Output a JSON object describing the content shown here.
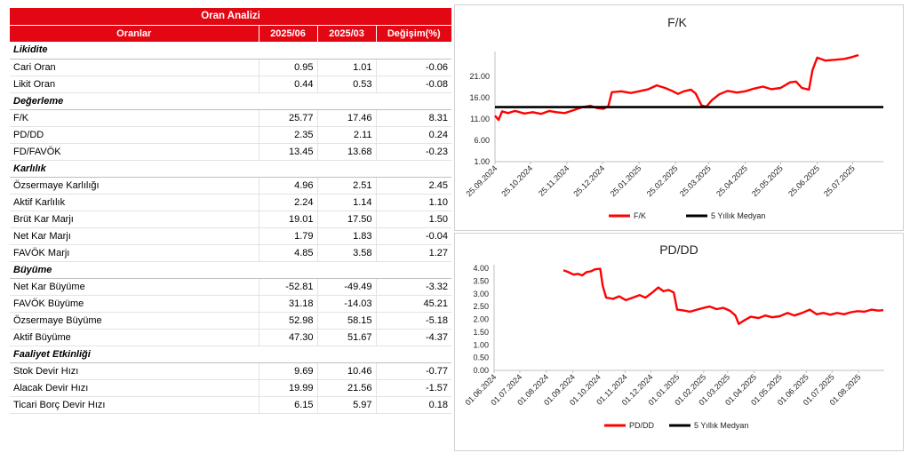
{
  "table": {
    "title": "Oran Analizi",
    "columns": [
      "Oranlar",
      "2025/06",
      "2025/03",
      "Değişim(%)"
    ],
    "sections": [
      {
        "name": "Likidite",
        "rows": [
          [
            "Cari Oran",
            "0.95",
            "1.01",
            "-0.06"
          ],
          [
            "Likit Oran",
            "0.44",
            "0.53",
            "-0.08"
          ]
        ]
      },
      {
        "name": "Değerleme",
        "rows": [
          [
            "F/K",
            "25.77",
            "17.46",
            "8.31"
          ],
          [
            "PD/DD",
            "2.35",
            "2.11",
            "0.24"
          ],
          [
            "FD/FAVÖK",
            "13.45",
            "13.68",
            "-0.23"
          ]
        ]
      },
      {
        "name": "Karlılık",
        "rows": [
          [
            "Özsermaye Karlılığı",
            "4.96",
            "2.51",
            "2.45"
          ],
          [
            "Aktif Karlılık",
            "2.24",
            "1.14",
            "1.10"
          ],
          [
            "Brüt Kar Marjı",
            "19.01",
            "17.50",
            "1.50"
          ],
          [
            "Net Kar Marjı",
            "1.79",
            "1.83",
            "-0.04"
          ],
          [
            "FAVÖK Marjı",
            "4.85",
            "3.58",
            "1.27"
          ]
        ]
      },
      {
        "name": "Büyüme",
        "rows": [
          [
            "Net Kar Büyüme",
            "-52.81",
            "-49.49",
            "-3.32"
          ],
          [
            "FAVÖK Büyüme",
            "31.18",
            "-14.03",
            "45.21"
          ],
          [
            "Özsermaye Büyüme",
            "52.98",
            "58.15",
            "-5.18"
          ],
          [
            "Aktif Büyüme",
            "47.30",
            "51.67",
            "-4.37"
          ]
        ]
      },
      {
        "name": "Faaliyet Etkinliği",
        "rows": [
          [
            "Stok Devir Hızı",
            "9.69",
            "10.46",
            "-0.77"
          ],
          [
            "Alacak Devir Hızı",
            "19.99",
            "21.56",
            "-1.57"
          ],
          [
            "Ticari Borç Devir Hızı",
            "6.15",
            "5.97",
            "0.18"
          ]
        ]
      }
    ]
  },
  "colors": {
    "accent": "#e30613",
    "series": "#ff0000",
    "median": "#000000"
  },
  "chart_data": [
    {
      "type": "line",
      "title": "F/K",
      "ylim": [
        1.0,
        26.0
      ],
      "yticks": [
        "1.00",
        "6.00",
        "11.00",
        "16.00",
        "21.00"
      ],
      "x_start": "2024-09-25",
      "x_end": "2025-08-20",
      "xticks": [
        "25.09.2024",
        "25.10.2024",
        "25.11.2024",
        "25.12.2024",
        "25.01.2025",
        "25.02.2025",
        "25.03.2025",
        "25.04.2025",
        "25.05.2025",
        "25.06.2025",
        "25.07.2025"
      ],
      "xtick_dates": [
        "2024-09-25",
        "2024-10-25",
        "2024-11-25",
        "2024-12-25",
        "2025-01-25",
        "2025-02-25",
        "2025-03-25",
        "2025-04-25",
        "2025-05-25",
        "2025-06-25",
        "2025-07-25"
      ],
      "grid": false,
      "legend": "bottom",
      "series": [
        {
          "name": "F/K",
          "color": "#ff0000",
          "points": [
            [
              "2024-09-25",
              11.8
            ],
            [
              "2024-09-28",
              10.8
            ],
            [
              "2024-10-01",
              12.8
            ],
            [
              "2024-10-06",
              12.4
            ],
            [
              "2024-10-12",
              12.9
            ],
            [
              "2024-10-20",
              12.3
            ],
            [
              "2024-10-27",
              12.6
            ],
            [
              "2024-11-03",
              12.2
            ],
            [
              "2024-11-10",
              12.9
            ],
            [
              "2024-11-16",
              12.6
            ],
            [
              "2024-11-23",
              12.4
            ],
            [
              "2024-12-01",
              13.1
            ],
            [
              "2024-12-08",
              13.8
            ],
            [
              "2024-12-15",
              14.1
            ],
            [
              "2024-12-20",
              13.6
            ],
            [
              "2024-12-26",
              13.4
            ],
            [
              "2024-12-30",
              14.0
            ],
            [
              "2025-01-02",
              17.3
            ],
            [
              "2025-01-10",
              17.5
            ],
            [
              "2025-01-18",
              17.1
            ],
            [
              "2025-01-25",
              17.5
            ],
            [
              "2025-02-02",
              18.0
            ],
            [
              "2025-02-09",
              18.9
            ],
            [
              "2025-02-16",
              18.3
            ],
            [
              "2025-02-22",
              17.6
            ],
            [
              "2025-02-27",
              16.9
            ],
            [
              "2025-03-04",
              17.5
            ],
            [
              "2025-03-10",
              17.9
            ],
            [
              "2025-03-14",
              17.0
            ],
            [
              "2025-03-19",
              14.2
            ],
            [
              "2025-03-23",
              13.9
            ],
            [
              "2025-03-28",
              15.5
            ],
            [
              "2025-04-03",
              16.8
            ],
            [
              "2025-04-10",
              17.6
            ],
            [
              "2025-04-18",
              17.2
            ],
            [
              "2025-04-25",
              17.5
            ],
            [
              "2025-05-02",
              18.1
            ],
            [
              "2025-05-10",
              18.6
            ],
            [
              "2025-05-17",
              18.0
            ],
            [
              "2025-05-25",
              18.3
            ],
            [
              "2025-06-02",
              19.6
            ],
            [
              "2025-06-07",
              19.8
            ],
            [
              "2025-06-12",
              18.3
            ],
            [
              "2025-06-18",
              17.9
            ],
            [
              "2025-06-21",
              22.5
            ],
            [
              "2025-06-25",
              25.4
            ],
            [
              "2025-07-02",
              24.7
            ],
            [
              "2025-07-10",
              24.9
            ],
            [
              "2025-07-18",
              25.1
            ],
            [
              "2025-07-24",
              25.5
            ],
            [
              "2025-07-30",
              26.0
            ]
          ]
        },
        {
          "name": "5 Yıllık Medyan",
          "color": "#000000",
          "points": [
            [
              "2024-09-25",
              13.8
            ],
            [
              "2025-08-20",
              13.8
            ]
          ]
        }
      ]
    },
    {
      "type": "line",
      "title": "PD/DD",
      "ylim": [
        0.0,
        4.0
      ],
      "yticks": [
        "0.00",
        "0.50",
        "1.00",
        "1.50",
        "2.00",
        "2.50",
        "3.00",
        "3.50",
        "4.00"
      ],
      "x_start": "2024-06-01",
      "x_end": "2025-08-31",
      "xticks": [
        "01.06.2024",
        "01.07.2024",
        "01.08.2024",
        "01.09.2024",
        "01.10.2024",
        "01.11.2024",
        "01.12.2024",
        "01.01.2025",
        "01.02.2025",
        "01.03.2025",
        "01.04.2025",
        "01.05.2025",
        "01.06.2025",
        "01.07.2025",
        "01.08.2025"
      ],
      "xtick_dates": [
        "2024-06-01",
        "2024-07-01",
        "2024-08-01",
        "2024-09-01",
        "2024-10-01",
        "2024-11-01",
        "2024-12-01",
        "2025-01-01",
        "2025-02-01",
        "2025-03-01",
        "2025-04-01",
        "2025-05-01",
        "2025-06-01",
        "2025-07-01",
        "2025-08-01"
      ],
      "grid": false,
      "legend": "bottom",
      "series": [
        {
          "name": "PD/DD",
          "color": "#ff0000",
          "points": [
            [
              "2024-08-21",
              3.92
            ],
            [
              "2024-08-26",
              3.86
            ],
            [
              "2024-09-02",
              3.75
            ],
            [
              "2024-09-07",
              3.78
            ],
            [
              "2024-09-12",
              3.72
            ],
            [
              "2024-09-17",
              3.85
            ],
            [
              "2024-09-22",
              3.88
            ],
            [
              "2024-09-27",
              3.96
            ],
            [
              "2024-10-03",
              3.98
            ],
            [
              "2024-10-06",
              3.3
            ],
            [
              "2024-10-10",
              2.85
            ],
            [
              "2024-10-18",
              2.8
            ],
            [
              "2024-10-25",
              2.9
            ],
            [
              "2024-11-02",
              2.75
            ],
            [
              "2024-11-10",
              2.85
            ],
            [
              "2024-11-18",
              2.95
            ],
            [
              "2024-11-25",
              2.85
            ],
            [
              "2024-12-03",
              3.05
            ],
            [
              "2024-12-10",
              3.25
            ],
            [
              "2024-12-16",
              3.1
            ],
            [
              "2024-12-22",
              3.15
            ],
            [
              "2024-12-28",
              3.05
            ],
            [
              "2025-01-01",
              2.38
            ],
            [
              "2025-01-08",
              2.35
            ],
            [
              "2025-01-16",
              2.3
            ],
            [
              "2025-01-24",
              2.38
            ],
            [
              "2025-02-01",
              2.45
            ],
            [
              "2025-02-08",
              2.5
            ],
            [
              "2025-02-16",
              2.4
            ],
            [
              "2025-02-24",
              2.45
            ],
            [
              "2025-03-04",
              2.33
            ],
            [
              "2025-03-10",
              2.15
            ],
            [
              "2025-03-14",
              1.82
            ],
            [
              "2025-03-20",
              1.95
            ],
            [
              "2025-03-28",
              2.1
            ],
            [
              "2025-04-06",
              2.05
            ],
            [
              "2025-04-14",
              2.15
            ],
            [
              "2025-04-22",
              2.08
            ],
            [
              "2025-05-01",
              2.12
            ],
            [
              "2025-05-10",
              2.25
            ],
            [
              "2025-05-18",
              2.15
            ],
            [
              "2025-05-27",
              2.25
            ],
            [
              "2025-06-05",
              2.38
            ],
            [
              "2025-06-13",
              2.2
            ],
            [
              "2025-06-21",
              2.25
            ],
            [
              "2025-06-29",
              2.18
            ],
            [
              "2025-07-07",
              2.25
            ],
            [
              "2025-07-15",
              2.2
            ],
            [
              "2025-07-23",
              2.28
            ],
            [
              "2025-07-31",
              2.32
            ],
            [
              "2025-08-08",
              2.3
            ],
            [
              "2025-08-16",
              2.38
            ],
            [
              "2025-08-24",
              2.34
            ],
            [
              "2025-08-30",
              2.36
            ]
          ]
        },
        {
          "name": "5 Yıllık Medyan",
          "color": "#000000",
          "points": []
        }
      ]
    }
  ]
}
